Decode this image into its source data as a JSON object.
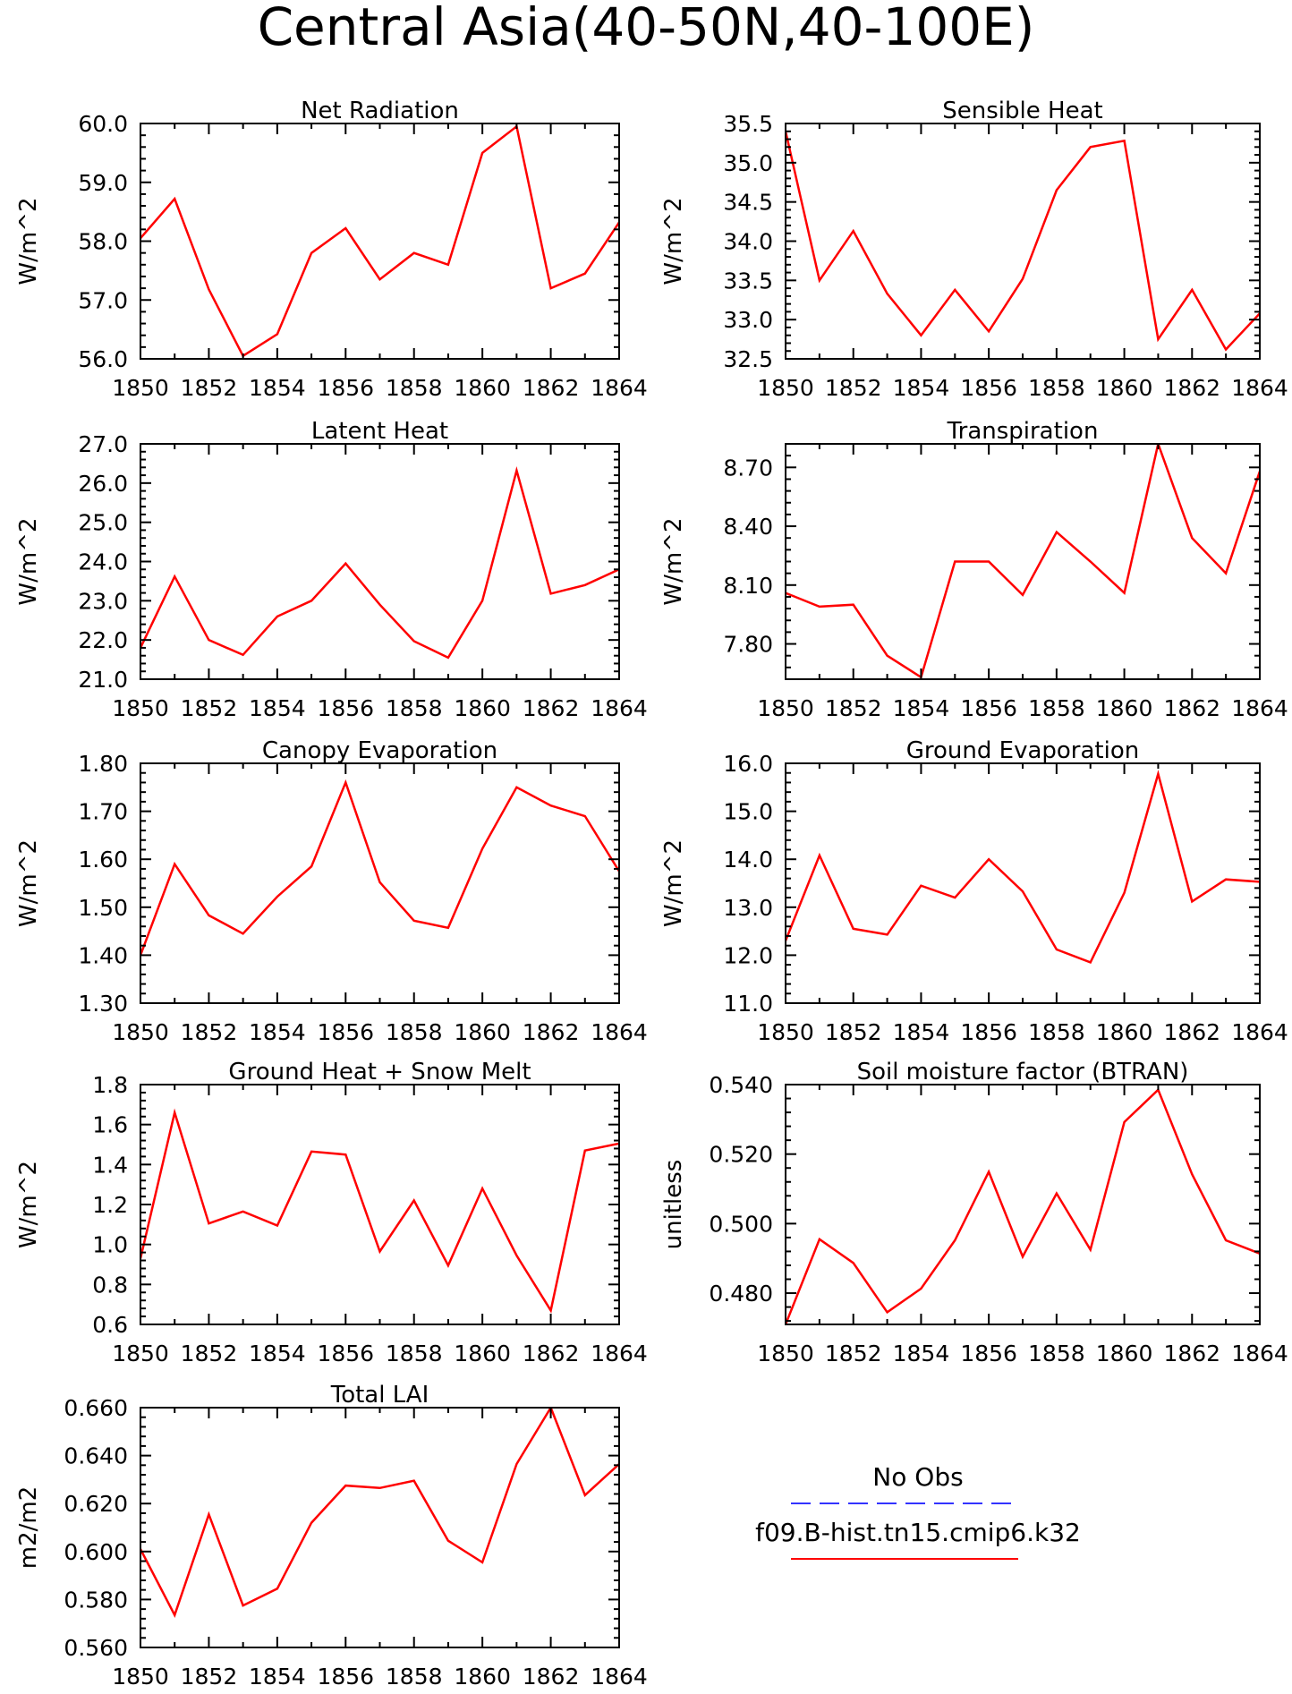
{
  "title": "Central Asia(40-50N,40-100E)",
  "legend": {
    "obs_label": "No Obs",
    "obs_color": "#3333ff",
    "model_label": "f09.B-hist.tn15.cmip6.k32",
    "model_color": "#ff0000"
  },
  "chart_data": [
    {
      "type": "line",
      "title": "Net Radiation",
      "ylabel": "W/m^2",
      "x": [
        1850,
        1851,
        1852,
        1853,
        1854,
        1855,
        1856,
        1857,
        1858,
        1859,
        1860,
        1861,
        1862,
        1863,
        1864
      ],
      "xticks": [
        "1850",
        "1852",
        "1854",
        "1856",
        "1858",
        "1860",
        "1862",
        "1864"
      ],
      "ylim": [
        56.0,
        60.0
      ],
      "yticks": [
        "56.0",
        "57.0",
        "58.0",
        "59.0",
        "60.0"
      ],
      "series": [
        {
          "values": [
            58.05,
            58.72,
            57.18,
            56.05,
            56.42,
            57.8,
            58.22,
            57.35,
            57.8,
            57.6,
            59.5,
            59.95,
            57.2,
            57.45,
            58.32
          ]
        }
      ]
    },
    {
      "type": "line",
      "title": "Sensible Heat",
      "ylabel": "W/m^2",
      "x": [
        1850,
        1851,
        1852,
        1853,
        1854,
        1855,
        1856,
        1857,
        1858,
        1859,
        1860,
        1861,
        1862,
        1863,
        1864
      ],
      "xticks": [
        "1850",
        "1852",
        "1854",
        "1856",
        "1858",
        "1860",
        "1862",
        "1864"
      ],
      "ylim": [
        32.5,
        35.5
      ],
      "yticks": [
        "32.5",
        "33.0",
        "33.5",
        "34.0",
        "34.5",
        "35.0",
        "35.5"
      ],
      "series": [
        {
          "values": [
            35.4,
            33.5,
            34.13,
            33.33,
            32.8,
            33.38,
            32.85,
            33.52,
            34.65,
            35.2,
            35.28,
            32.75,
            33.38,
            32.62,
            33.08
          ]
        }
      ]
    },
    {
      "type": "line",
      "title": "Latent Heat",
      "ylabel": "W/m^2",
      "x": [
        1850,
        1851,
        1852,
        1853,
        1854,
        1855,
        1856,
        1857,
        1858,
        1859,
        1860,
        1861,
        1862,
        1863,
        1864
      ],
      "xticks": [
        "1850",
        "1852",
        "1854",
        "1856",
        "1858",
        "1860",
        "1862",
        "1864"
      ],
      "ylim": [
        21.0,
        27.0
      ],
      "yticks": [
        "21.0",
        "22.0",
        "23.0",
        "24.0",
        "25.0",
        "26.0",
        "27.0"
      ],
      "series": [
        {
          "values": [
            21.8,
            23.62,
            22.0,
            21.62,
            22.6,
            23.0,
            23.95,
            22.9,
            21.97,
            21.55,
            23.0,
            26.32,
            23.18,
            23.4,
            23.8
          ]
        }
      ]
    },
    {
      "type": "line",
      "title": "Transpiration",
      "ylabel": "W/m^2",
      "x": [
        1850,
        1851,
        1852,
        1853,
        1854,
        1855,
        1856,
        1857,
        1858,
        1859,
        1860,
        1861,
        1862,
        1863,
        1864
      ],
      "xticks": [
        "1850",
        "1852",
        "1854",
        "1856",
        "1858",
        "1860",
        "1862",
        "1864"
      ],
      "ylim": [
        7.62,
        8.82
      ],
      "yticks": [
        "7.80",
        "8.10",
        "8.40",
        "8.70"
      ],
      "series": [
        {
          "values": [
            8.06,
            7.99,
            8.0,
            7.74,
            7.63,
            8.22,
            8.22,
            8.05,
            8.37,
            8.22,
            8.06,
            8.82,
            8.34,
            8.16,
            8.68
          ]
        }
      ]
    },
    {
      "type": "line",
      "title": "Canopy Evaporation",
      "ylabel": "W/m^2",
      "x": [
        1850,
        1851,
        1852,
        1853,
        1854,
        1855,
        1856,
        1857,
        1858,
        1859,
        1860,
        1861,
        1862,
        1863,
        1864
      ],
      "xticks": [
        "1850",
        "1852",
        "1854",
        "1856",
        "1858",
        "1860",
        "1862",
        "1864"
      ],
      "ylim": [
        1.3,
        1.8
      ],
      "yticks": [
        "1.30",
        "1.40",
        "1.50",
        "1.60",
        "1.70",
        "1.80"
      ],
      "series": [
        {
          "values": [
            1.4,
            1.59,
            1.483,
            1.445,
            1.522,
            1.585,
            1.76,
            1.552,
            1.472,
            1.457,
            1.622,
            1.75,
            1.712,
            1.69,
            1.575
          ]
        }
      ]
    },
    {
      "type": "line",
      "title": "Ground Evaporation",
      "ylabel": "W/m^2",
      "x": [
        1850,
        1851,
        1852,
        1853,
        1854,
        1855,
        1856,
        1857,
        1858,
        1859,
        1860,
        1861,
        1862,
        1863,
        1864
      ],
      "xticks": [
        "1850",
        "1852",
        "1854",
        "1856",
        "1858",
        "1860",
        "1862",
        "1864"
      ],
      "ylim": [
        11.0,
        16.0
      ],
      "yticks": [
        "11.0",
        "12.0",
        "13.0",
        "14.0",
        "15.0",
        "16.0"
      ],
      "series": [
        {
          "values": [
            12.3,
            14.08,
            12.55,
            12.43,
            13.45,
            13.2,
            14.0,
            13.33,
            12.12,
            11.85,
            13.3,
            15.78,
            13.12,
            13.58,
            13.53
          ]
        }
      ]
    },
    {
      "type": "line",
      "title": "Ground Heat + Snow Melt",
      "ylabel": "W/m^2",
      "x": [
        1850,
        1851,
        1852,
        1853,
        1854,
        1855,
        1856,
        1857,
        1858,
        1859,
        1860,
        1861,
        1862,
        1863,
        1864
      ],
      "xticks": [
        "1850",
        "1852",
        "1854",
        "1856",
        "1858",
        "1860",
        "1862",
        "1864"
      ],
      "ylim": [
        0.6,
        1.8
      ],
      "yticks": [
        "0.6",
        "0.8",
        "1.0",
        "1.2",
        "1.4",
        "1.6",
        "1.8"
      ],
      "series": [
        {
          "values": [
            0.93,
            1.66,
            1.105,
            1.165,
            1.095,
            1.465,
            1.45,
            0.965,
            1.22,
            0.895,
            1.28,
            0.945,
            0.67,
            1.47,
            1.505
          ]
        }
      ]
    },
    {
      "type": "line",
      "title": "Soil moisture factor (BTRAN)",
      "ylabel": "unitless",
      "x": [
        1850,
        1851,
        1852,
        1853,
        1854,
        1855,
        1856,
        1857,
        1858,
        1859,
        1860,
        1861,
        1862,
        1863,
        1864
      ],
      "xticks": [
        "1850",
        "1852",
        "1854",
        "1856",
        "1858",
        "1860",
        "1862",
        "1864"
      ],
      "ylim": [
        0.471,
        0.54
      ],
      "yticks": [
        "0.480",
        "0.500",
        "0.520",
        "0.540"
      ],
      "series": [
        {
          "values": [
            0.471,
            0.4955,
            0.4887,
            0.4745,
            0.4813,
            0.4952,
            0.5149,
            0.4905,
            0.5087,
            0.4925,
            0.5292,
            0.5385,
            0.5142,
            0.4952,
            0.4914
          ]
        }
      ]
    },
    {
      "type": "line",
      "title": "Total LAI",
      "ylabel": "m2/m2",
      "x": [
        1850,
        1851,
        1852,
        1853,
        1854,
        1855,
        1856,
        1857,
        1858,
        1859,
        1860,
        1861,
        1862,
        1863,
        1864
      ],
      "xticks": [
        "1850",
        "1852",
        "1854",
        "1856",
        "1858",
        "1860",
        "1862",
        "1864"
      ],
      "ylim": [
        0.56,
        0.66
      ],
      "yticks": [
        "0.560",
        "0.580",
        "0.600",
        "0.620",
        "0.640",
        "0.660"
      ],
      "series": [
        {
          "values": [
            0.601,
            0.5735,
            0.6155,
            0.5775,
            0.5845,
            0.612,
            0.6275,
            0.6265,
            0.6295,
            0.6045,
            0.5955,
            0.6365,
            0.66,
            0.6235,
            0.6365
          ]
        }
      ]
    }
  ]
}
